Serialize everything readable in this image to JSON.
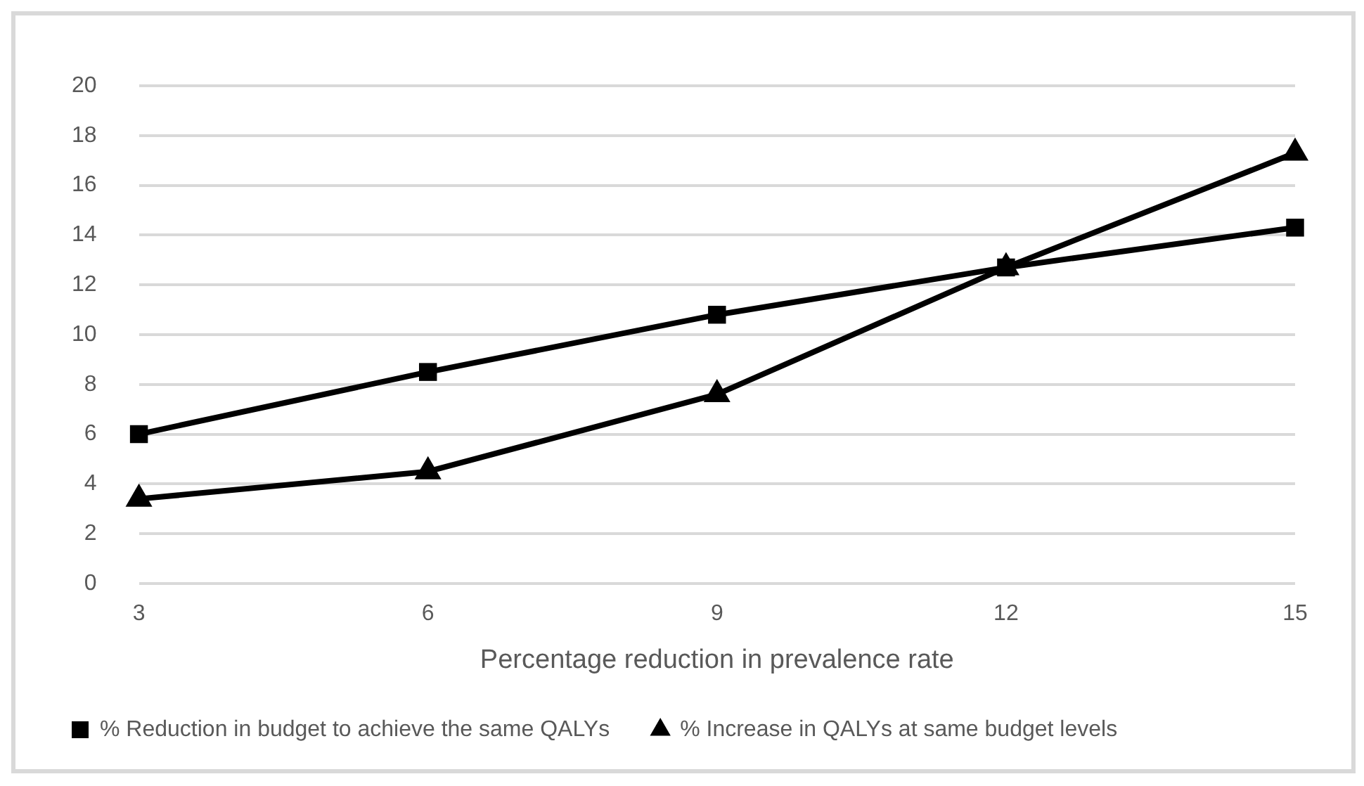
{
  "chart_data": {
    "type": "line",
    "xlabel": "Percentage reduction in prevalence rate",
    "categories": [
      "3",
      "6",
      "9",
      "12",
      "15"
    ],
    "series": [
      {
        "name": "% Reduction in budget to achieve the same QALYs",
        "color": "#000000",
        "marker": "square",
        "values": [
          6.0,
          8.5,
          10.8,
          12.7,
          14.3
        ]
      },
      {
        "name": "% Increase in QALYs at same budget levels",
        "color": "#000000",
        "marker": "triangle",
        "values": [
          3.4,
          4.5,
          7.6,
          12.7,
          17.3
        ]
      }
    ],
    "ylim": [
      0,
      20
    ],
    "yticks": [
      0,
      2,
      4,
      6,
      8,
      10,
      12,
      14,
      16,
      18,
      20
    ],
    "grid": "y",
    "legend": "bottom left"
  }
}
